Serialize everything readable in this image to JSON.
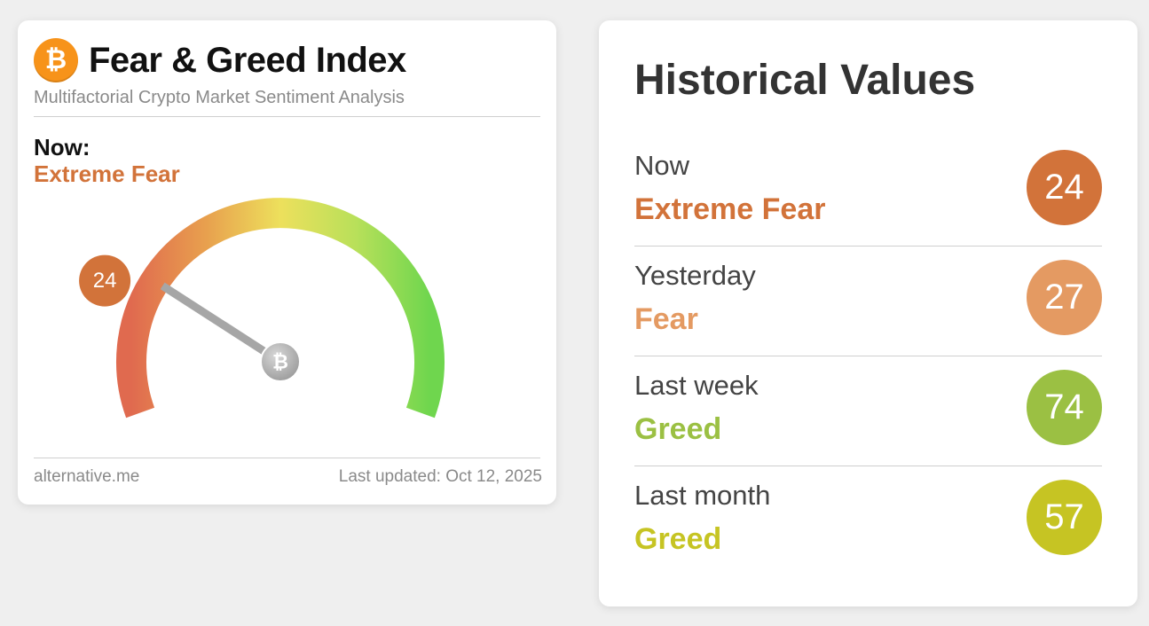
{
  "widget": {
    "logo_symbol": "₿",
    "title": "Fear & Greed Index",
    "subtitle": "Multifactorial Crypto Market Sentiment Analysis",
    "now_label": "Now:",
    "now_status": "Extreme Fear",
    "gauge": {
      "value": 24,
      "value_label": "24",
      "min": 0,
      "max": 100,
      "hub_symbol": "₿"
    },
    "footer_source": "alternative.me",
    "footer_updated": "Last updated: Oct 12, 2025"
  },
  "historical": {
    "title": "Historical Values",
    "rows": [
      {
        "label": "Now",
        "status": "Extreme Fear",
        "value": "24",
        "color": "#d2733a"
      },
      {
        "label": "Yesterday",
        "status": "Fear",
        "value": "27",
        "color": "#e49a62"
      },
      {
        "label": "Last week",
        "status": "Greed",
        "value": "74",
        "color": "#9bc043"
      },
      {
        "label": "Last month",
        "status": "Greed",
        "value": "57",
        "color": "#c6c423"
      }
    ]
  },
  "colors": {
    "extreme_fear": "#d2733a",
    "fear": "#e49a62",
    "greed": "#9bc043",
    "neutral_greed": "#c6c423",
    "bitcoin_orange": "#f7931a"
  }
}
